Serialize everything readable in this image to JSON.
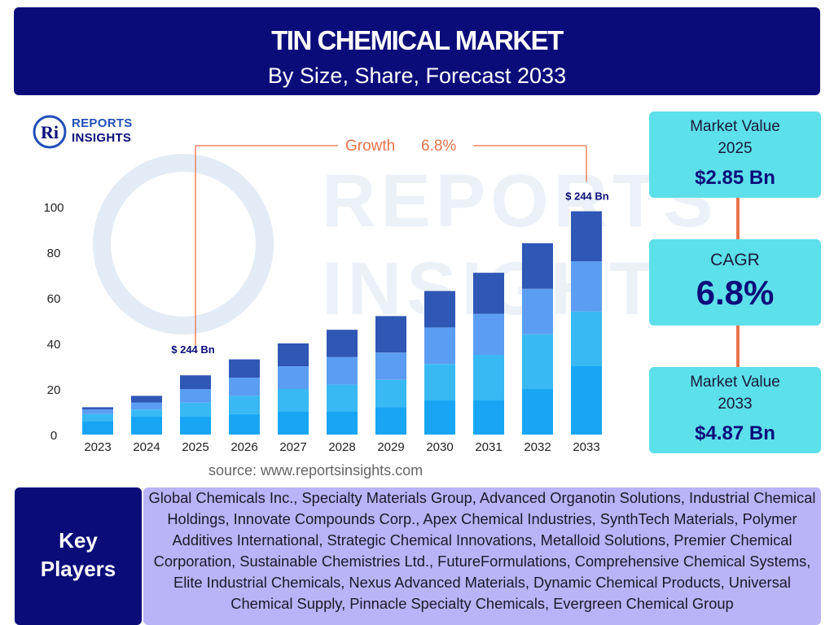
{
  "header": {
    "title": "TIN CHEMICAL MARKET",
    "subtitle": "By Size, Share, Forecast 2033"
  },
  "logo": {
    "mark": "Ri",
    "line1": "REPORTS",
    "line2": "INSIGHTS"
  },
  "watermark": {
    "line1": "REPORTS",
    "line2": "INSIGHTS"
  },
  "chart_data": {
    "type": "bar",
    "stacked": true,
    "categories": [
      "2023",
      "2024",
      "2025",
      "2026",
      "2027",
      "2028",
      "2029",
      "2030",
      "2031",
      "2032",
      "2033"
    ],
    "series": [
      {
        "values": [
          6,
          8,
          8,
          9,
          10,
          10,
          12,
          15,
          15,
          20,
          30
        ]
      },
      {
        "values": [
          3,
          3,
          6,
          8,
          10,
          12,
          12,
          16,
          20,
          24,
          24
        ]
      },
      {
        "values": [
          2,
          3,
          6,
          8,
          10,
          12,
          12,
          16,
          18,
          20,
          22
        ]
      },
      {
        "values": [
          1,
          3,
          6,
          8,
          10,
          12,
          16,
          16,
          18,
          20,
          22
        ]
      }
    ],
    "colors": [
      "#18a6f4",
      "#38b9f4",
      "#5b9df2",
      "#2f57b5"
    ],
    "ylim": [
      0,
      100
    ],
    "yticks": [
      0,
      20,
      40,
      60,
      80,
      100
    ],
    "grid": false,
    "annotations": {
      "growth_label": "Growth",
      "growth_value": "6.8%",
      "start_label": "$ 244 Bn",
      "end_label": "$ 244 Bn"
    },
    "annotation_color": "#e8724a"
  },
  "source": "source: www.reportsinsights.com",
  "cards": {
    "market_value_2025": {
      "label": "Market Value 2025",
      "value": "$2.85 Bn"
    },
    "cagr": {
      "label": "CAGR",
      "value": "6.8%"
    },
    "market_value_2033": {
      "label": "Market Value 2033",
      "value": "$4.87 Bn"
    }
  },
  "key_players": {
    "label": "Key Players",
    "list": "Global Chemicals Inc., Specialty Materials Group, Advanced Organotin Solutions, Industrial Chemical Holdings, Innovate Compounds Corp., Apex Chemical Industries, SynthTech Materials, Polymer Additives International, Strategic Chemical Innovations, Metalloid Solutions, Premier Chemical Corporation, Sustainable Chemistries Ltd., FutureFormulations, Comprehensive Chemical Systems, Elite Industrial Chemicals, Nexus Advanced Materials, Dynamic Chemical Products, Universal Chemical Supply, Pinnacle Specialty Chemicals, Evergreen Chemical Group"
  },
  "colors": {
    "navy": "#0b0c7a",
    "cyan_card": "#5ce0ea",
    "lavender": "#b9b3f7",
    "accent_orange": "#e8724a"
  }
}
